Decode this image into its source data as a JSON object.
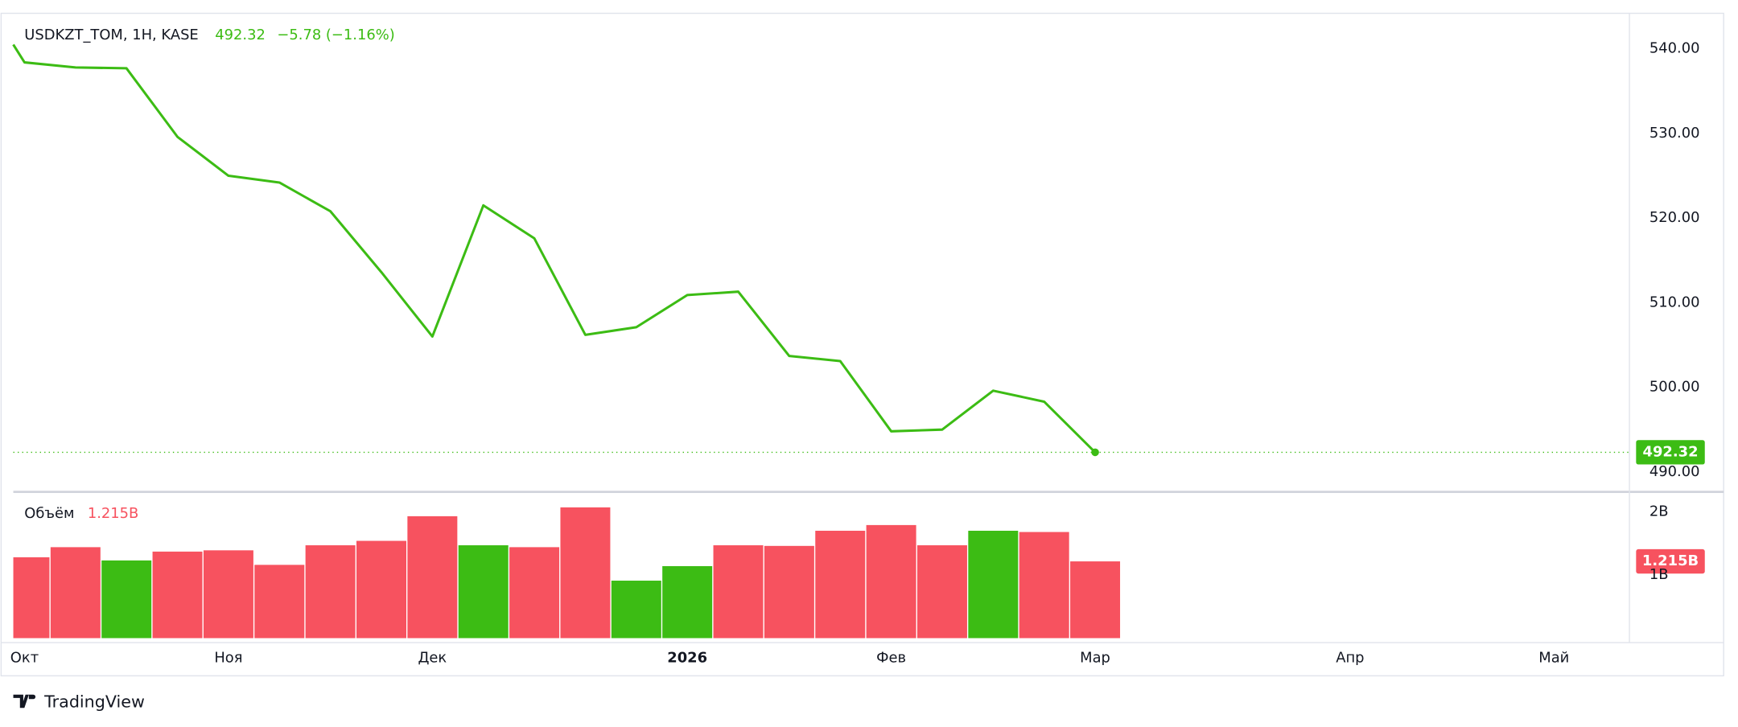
{
  "chart_data": [
    {
      "type": "line",
      "title": "USDKZT_TOM, 1H, KASE",
      "change_label": "−5.78 (−1.16%)",
      "color": "#3cbc14",
      "x": [
        -0.22,
        0,
        1,
        2,
        3,
        4,
        5,
        6,
        7,
        8,
        9,
        10,
        11,
        12,
        13,
        14,
        15,
        16,
        17,
        18,
        19,
        20,
        21
      ],
      "values": [
        540.5,
        538.4,
        537.8,
        537.7,
        529.6,
        525.0,
        524.2,
        520.8,
        513.6,
        506.0,
        521.5,
        517.6,
        506.2,
        507.1,
        510.9,
        511.3,
        503.7,
        503.1,
        494.8,
        495.0,
        499.6,
        498.3,
        492.32
      ],
      "xlim": [
        -0.22,
        31.48
      ],
      "xticks": [
        {
          "value": 0,
          "label": "Окт"
        },
        {
          "value": 4,
          "label": "Ноя"
        },
        {
          "value": 8,
          "label": "Дек"
        },
        {
          "value": 13,
          "label": "2026"
        },
        {
          "value": 17,
          "label": "Фев"
        },
        {
          "value": 21,
          "label": "Мар"
        },
        {
          "value": 26,
          "label": "Апр"
        },
        {
          "value": 30,
          "label": "Май"
        }
      ],
      "ylim": [
        487.9,
        544.2
      ],
      "yticks": [
        {
          "value": 490,
          "label": "490.00"
        },
        {
          "value": 500,
          "label": "500.00"
        },
        {
          "value": 510,
          "label": "510.00"
        },
        {
          "value": 520,
          "label": "520.00"
        },
        {
          "value": 530,
          "label": "530.00"
        },
        {
          "value": 540,
          "label": "540.00"
        }
      ],
      "grid": true
    },
    {
      "type": "bar",
      "title": "Объём",
      "x": [
        0,
        1,
        2,
        3,
        4,
        5,
        6,
        7,
        8,
        9,
        10,
        11,
        12,
        13,
        14,
        15,
        16,
        17,
        18,
        19,
        20,
        21
      ],
      "values": [
        1.28,
        1.44,
        1.23,
        1.37,
        1.39,
        1.16,
        1.47,
        1.54,
        1.93,
        1.47,
        1.44,
        2.07,
        0.91,
        1.14,
        1.47,
        1.46,
        1.7,
        1.79,
        1.47,
        1.7,
        1.68,
        1.215
      ],
      "value_labels": [
        null,
        null,
        null,
        null,
        null,
        null,
        null,
        null,
        null,
        null,
        null,
        null,
        null,
        null,
        null,
        null,
        null,
        null,
        null,
        null,
        null,
        "1.215B"
      ],
      "colors": [
        "#f7525f",
        "#f7525f",
        "#3cbc14",
        "#f7525f",
        "#f7525f",
        "#f7525f",
        "#f7525f",
        "#f7525f",
        "#f7525f",
        "#3cbc14",
        "#f7525f",
        "#f7525f",
        "#3cbc14",
        "#3cbc14",
        "#f7525f",
        "#f7525f",
        "#f7525f",
        "#f7525f",
        "#f7525f",
        "#3cbc14",
        "#f7525f",
        "#f7525f"
      ],
      "ylim": [
        0,
        2.28
      ],
      "yticks": [
        {
          "value": 1,
          "label": "1B"
        },
        {
          "value": 2,
          "label": "2B"
        }
      ],
      "grid": true
    }
  ],
  "footer": "TradingView"
}
